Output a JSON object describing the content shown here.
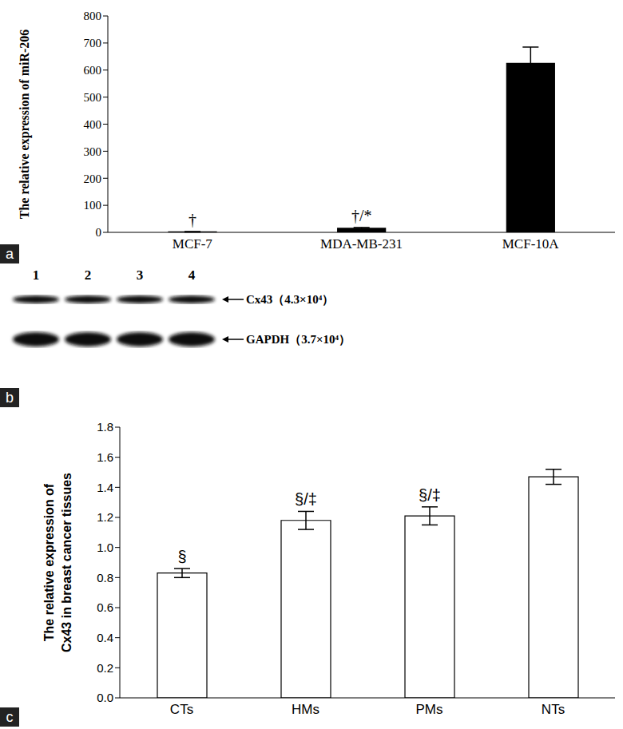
{
  "chart_data": [
    {
      "panel": "a",
      "type": "bar",
      "ylabel": [
        "The relative expression of miR-206"
      ],
      "categories": [
        "MCF-7",
        "MDA-MB-231",
        "MCF-10A"
      ],
      "values": [
        2,
        15,
        625
      ],
      "errors": [
        1,
        3,
        60
      ],
      "annotations": [
        "†",
        "†/*",
        null
      ],
      "color": "#000000",
      "ylim": [
        0,
        800
      ],
      "yticks": [
        0,
        100,
        200,
        300,
        400,
        500,
        600,
        700,
        800
      ],
      "grid": false
    },
    {
      "panel": "b",
      "type": "western_blot",
      "lanes": [
        "1",
        "2",
        "3",
        "4"
      ],
      "bands": [
        "Cx43（4.3×10⁴）",
        "GAPDH（3.7×10⁴）"
      ]
    },
    {
      "panel": "c",
      "type": "bar",
      "ylabel": [
        "The relative expression of",
        "Cx43 in breast cancer tissues"
      ],
      "categories": [
        "CTs",
        "HMs",
        "PMs",
        "NTs"
      ],
      "values": [
        0.83,
        1.18,
        1.21,
        1.47
      ],
      "errors": [
        0.03,
        0.06,
        0.06,
        0.05
      ],
      "annotations": [
        "§",
        "§/‡",
        "§/‡",
        null
      ],
      "color": "#ffffff",
      "ylim": [
        0,
        1.8
      ],
      "yticks": [
        {
          "value": 0,
          "label": "0.0"
        },
        0.2,
        0.4,
        0.6,
        0.8,
        {
          "value": 1,
          "label": "1.0"
        },
        1.2,
        1.4,
        1.6,
        1.8
      ],
      "grid": false
    }
  ]
}
